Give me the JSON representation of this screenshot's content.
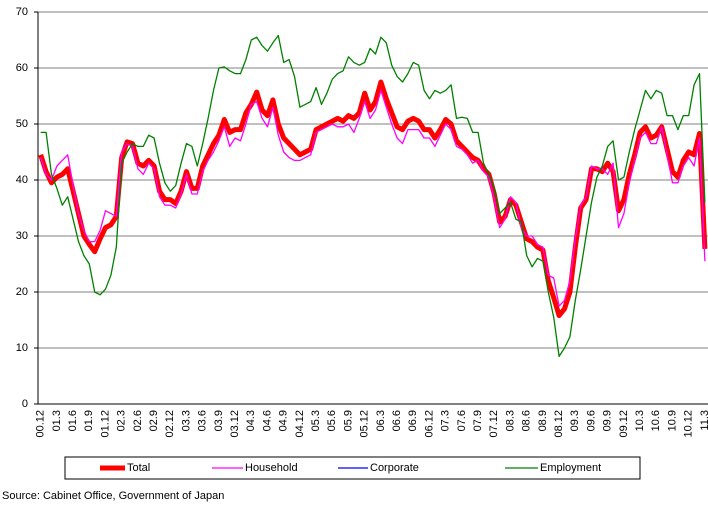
{
  "chart_data": {
    "type": "line",
    "source": "Source: Cabinet Office, Government of Japan",
    "categories": [
      "00.12",
      null,
      null,
      "01.3",
      null,
      null,
      "01.6",
      null,
      null,
      "01.9",
      null,
      null,
      "01.12",
      null,
      null,
      "02.3",
      null,
      null,
      "02.6",
      null,
      null,
      "02.9",
      null,
      null,
      "02.12",
      null,
      null,
      "03.3",
      null,
      null,
      "03.6",
      null,
      null,
      "03.9",
      null,
      null,
      "03.12",
      null,
      null,
      "04.3",
      null,
      null,
      "04.6",
      null,
      null,
      "04.9",
      null,
      null,
      "04.12",
      null,
      null,
      "05.3",
      null,
      null,
      "05.6",
      null,
      null,
      "05.9",
      null,
      null,
      "05.12",
      null,
      null,
      "06.3",
      null,
      null,
      "06.6",
      null,
      null,
      "06.9",
      null,
      null,
      "06.12",
      null,
      null,
      "07.3",
      null,
      null,
      "07.6",
      null,
      null,
      "07.9",
      null,
      null,
      "07.12",
      null,
      null,
      "08.3",
      null,
      null,
      "08.6",
      null,
      null,
      "08.9",
      null,
      null,
      "08.12",
      null,
      null,
      "09.3",
      null,
      null,
      "09.6",
      null,
      null,
      "09.9",
      null,
      null,
      "09.12",
      null,
      null,
      "10.3",
      null,
      null,
      "10.6",
      null,
      null,
      "10.9",
      null,
      null,
      "10.12",
      null,
      null,
      "11.3"
    ],
    "series": [
      {
        "name": "Total",
        "color": "#ff0000",
        "width": 5,
        "values": [
          44.5,
          41.5,
          39.5,
          40.5,
          41,
          42,
          38,
          34,
          30,
          28.5,
          27.2,
          29.5,
          31.5,
          32,
          33.5,
          44,
          46.8,
          46.5,
          43,
          42.5,
          43.5,
          42.5,
          38,
          36.5,
          36.5,
          35.8,
          38,
          41.5,
          38.5,
          38.5,
          42.5,
          44.5,
          46.5,
          48,
          50.8,
          48.5,
          49,
          49,
          52,
          53.5,
          55.7,
          52.5,
          51.5,
          54.3,
          50,
          47.5,
          46.5,
          45.5,
          44.5,
          45,
          45.5,
          49,
          49.5,
          50,
          50.5,
          51,
          50.5,
          51.5,
          51,
          52,
          55.5,
          52.5,
          54,
          57.5,
          54.5,
          52,
          49.5,
          49,
          50.5,
          51,
          50.5,
          49,
          49,
          47.5,
          49,
          50.8,
          50,
          47,
          46,
          45,
          44,
          43.5,
          42,
          41,
          37.5,
          32.5,
          33.5,
          36.5,
          35.5,
          32.5,
          29.5,
          29,
          28,
          27.5,
          22,
          19,
          15.8,
          17,
          20,
          28,
          35,
          36.5,
          42,
          42,
          41.5,
          43,
          41.5,
          34.5,
          36.5,
          41,
          44.5,
          48.5,
          49.5,
          47.5,
          48,
          49.5,
          45.5,
          41.5,
          40.5,
          43.5,
          45,
          44.5,
          48.3,
          27.7
        ]
      },
      {
        "name": "Household",
        "color": "#ff00ff",
        "width": 1.3,
        "values": [
          44,
          41,
          40,
          42.5,
          43.5,
          44.5,
          39,
          34,
          31,
          29,
          29,
          31,
          34.5,
          34,
          33.5,
          45,
          46.5,
          46,
          42,
          41,
          43,
          42,
          37,
          35.5,
          35.5,
          35,
          37.5,
          41,
          37.5,
          37.5,
          41.5,
          43.5,
          45,
          47,
          49.5,
          46,
          47.5,
          47,
          50,
          53.5,
          54,
          51,
          49.5,
          53,
          48,
          45,
          44,
          43.5,
          43.5,
          44,
          44.5,
          48.5,
          49,
          49.5,
          50,
          49.5,
          49.5,
          50,
          48.5,
          51,
          54,
          51,
          52.5,
          56,
          53,
          50,
          47.5,
          46.5,
          49,
          49,
          49,
          47.5,
          47.5,
          46,
          48,
          50,
          49,
          46,
          45.5,
          44.5,
          43,
          43.5,
          41.5,
          40.5,
          36.5,
          31.5,
          33,
          37,
          36,
          31.5,
          30,
          30,
          28.5,
          28,
          23,
          22.5,
          17.5,
          18.5,
          22,
          29.5,
          35.5,
          37,
          42.5,
          42,
          42,
          41,
          43,
          31.5,
          34,
          39.5,
          43.5,
          47.5,
          48.5,
          46.5,
          46.5,
          49.5,
          44.5,
          39.5,
          39.5,
          42.5,
          44,
          42.5,
          47.5,
          25.5
        ]
      },
      {
        "name": "Corporate",
        "color": "#0000ff",
        "width": 1.3,
        "values": [
          44.5,
          41.5,
          39.5,
          40.5,
          41,
          42,
          38,
          34,
          30,
          28.5,
          27.2,
          29.5,
          31.5,
          32,
          33.5,
          44,
          46.8,
          46.5,
          43,
          42.5,
          43.5,
          42.5,
          38,
          36.5,
          36.5,
          35.8,
          38,
          41.5,
          38.5,
          38.5,
          42.5,
          44.5,
          46.5,
          48,
          50.8,
          48.5,
          49,
          49,
          52,
          53.5,
          55.7,
          52.5,
          51.5,
          54.3,
          50,
          47.5,
          46.5,
          45.5,
          44.5,
          45,
          45.5,
          49,
          49.5,
          50,
          50.5,
          51,
          50.5,
          51.5,
          51,
          52,
          55.5,
          52.5,
          54,
          57.5,
          54.5,
          52,
          49.5,
          49,
          50.5,
          51,
          50.5,
          49,
          49,
          47.5,
          49,
          50.8,
          50,
          47,
          46,
          45,
          44,
          43.5,
          42,
          41,
          37.5,
          32.5,
          33.5,
          36.5,
          35.5,
          32.5,
          29.5,
          29,
          28,
          27.5,
          22,
          19,
          15.8,
          17,
          20,
          28,
          35,
          36.5,
          42,
          42,
          41.5,
          43,
          41.5,
          34.5,
          36.5,
          41,
          44.5,
          48.5,
          49.5,
          47.5,
          48,
          49.5,
          45.5,
          41.5,
          40.5,
          43.5,
          45,
          44.5,
          48.3,
          27.7
        ]
      },
      {
        "name": "Employment",
        "color": "#008000",
        "width": 1.3,
        "values": [
          48.5,
          48.5,
          41,
          38.5,
          35.5,
          37,
          33,
          29,
          26.5,
          25,
          20,
          19.5,
          20.5,
          23,
          28,
          43,
          45,
          46.5,
          46,
          46,
          48,
          47.5,
          43,
          39.5,
          38,
          39,
          43,
          46.5,
          46,
          42.5,
          46.5,
          51,
          56,
          60,
          60.2,
          59.5,
          59,
          59,
          61.5,
          65,
          65.5,
          64,
          63,
          64.5,
          65.8,
          61,
          61.5,
          58.5,
          53,
          53.5,
          54,
          56.5,
          53.5,
          55.5,
          58,
          59,
          59.5,
          62,
          61,
          60.5,
          61,
          63.5,
          62.5,
          65.5,
          64.5,
          60.5,
          58.5,
          57.5,
          59,
          61,
          60.5,
          56,
          54.5,
          56,
          55.5,
          56,
          57,
          51,
          51.2,
          51,
          48.5,
          48.5,
          43,
          41,
          38.5,
          34,
          35,
          36,
          33,
          32.5,
          26.5,
          24.5,
          26,
          25.5,
          20,
          15.5,
          8.5,
          10,
          12,
          18.5,
          24,
          30,
          36,
          40.5,
          42.5,
          46,
          47,
          40,
          40.5,
          45,
          49,
          52.5,
          56,
          54.5,
          56,
          55.5,
          51.5,
          51.5,
          49,
          51.5,
          51.5,
          57,
          59,
          36
        ]
      }
    ],
    "ylim": [
      0,
      70
    ],
    "yticks": [
      0,
      10,
      20,
      30,
      40,
      50,
      60,
      70
    ],
    "grid": true
  }
}
